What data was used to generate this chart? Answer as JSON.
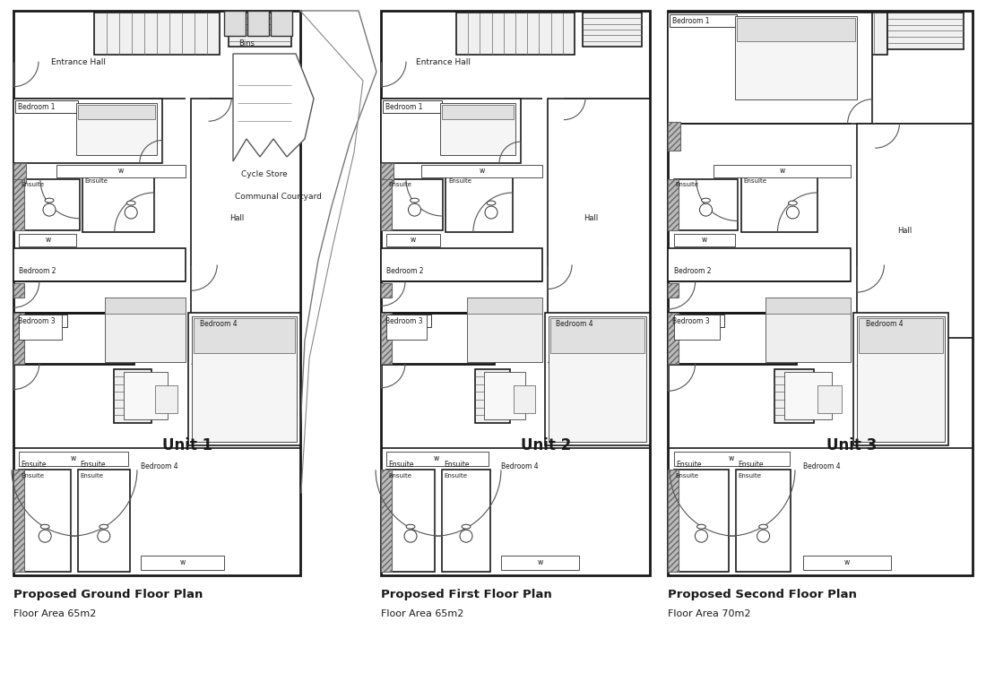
{
  "bg_color": "#ffffff",
  "wall_color": "#1a1a1a",
  "light_wall": "#555555",
  "hatch_color": "#aaaaaa",
  "titles": [
    "Proposed Ground Floor Plan",
    "Proposed First Floor Plan",
    "Proposed Second Floor Plan"
  ],
  "subtitles": [
    "Floor Area 65m2",
    "Floor Area 65m2",
    "Floor Area 70m2"
  ],
  "units": [
    "Unit 1",
    "Unit 2",
    "Unit 3"
  ]
}
